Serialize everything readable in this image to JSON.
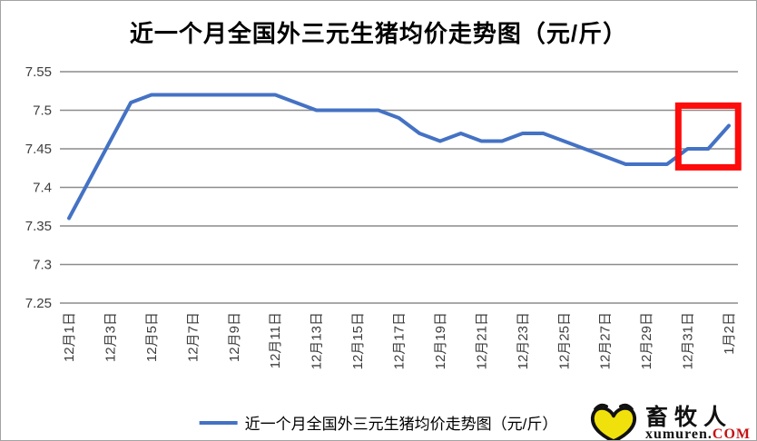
{
  "title": "近一个月全国外三元生猪均价走势图（元/斤）",
  "legend": {
    "label": "近一个月全国外三元生猪均价走势图（元/斤）",
    "line_color": "#4472C4"
  },
  "logo": {
    "brand": "畜牧人",
    "domain": "xumuren.",
    "domain_suffix": "COM",
    "heart_fill": "#f0e10c",
    "outline_color": "#111111",
    "suffix_color": "#c41414"
  },
  "chart_data": {
    "type": "line",
    "title": "近一个月全国外三元生猪均价走势图（元/斤）",
    "x": [
      "12月1日",
      "12月2日",
      "12月3日",
      "12月4日",
      "12月5日",
      "12月6日",
      "12月7日",
      "12月8日",
      "12月9日",
      "12月10日",
      "12月11日",
      "12月12日",
      "12月13日",
      "12月14日",
      "12月15日",
      "12月16日",
      "12月17日",
      "12月18日",
      "12月19日",
      "12月20日",
      "12月21日",
      "12月22日",
      "12月23日",
      "12月24日",
      "12月25日",
      "12月26日",
      "12月27日",
      "12月28日",
      "12月29日",
      "12月30日",
      "12月31日",
      "1月1日",
      "1月2日"
    ],
    "values": [
      7.36,
      7.41,
      7.46,
      7.51,
      7.52,
      7.52,
      7.52,
      7.52,
      7.52,
      7.52,
      7.52,
      7.51,
      7.5,
      7.5,
      7.5,
      7.5,
      7.49,
      7.47,
      7.46,
      7.47,
      7.46,
      7.46,
      7.47,
      7.47,
      7.46,
      7.45,
      7.44,
      7.43,
      7.43,
      7.43,
      7.45,
      7.45,
      7.48
    ],
    "x_tick_every": 2,
    "y_ticks": [
      7.25,
      7.3,
      7.35,
      7.4,
      7.45,
      7.5,
      7.55
    ],
    "y_tick_labels": [
      "7.25",
      "7.3",
      "7.35",
      "7.4",
      "7.45",
      "7.5",
      "7.55"
    ],
    "ylim": [
      7.25,
      7.55
    ],
    "grid": true,
    "legend_position": "bottom",
    "line_color": "#4472C4",
    "gridline_color": "#8c8c8c",
    "tick_label_color": "#3d3d3d",
    "annotation_box": {
      "color": "#fe0b0b",
      "day_start": 30.55,
      "day_end": 33.45,
      "value_low": 7.426,
      "value_high": 7.506
    }
  }
}
